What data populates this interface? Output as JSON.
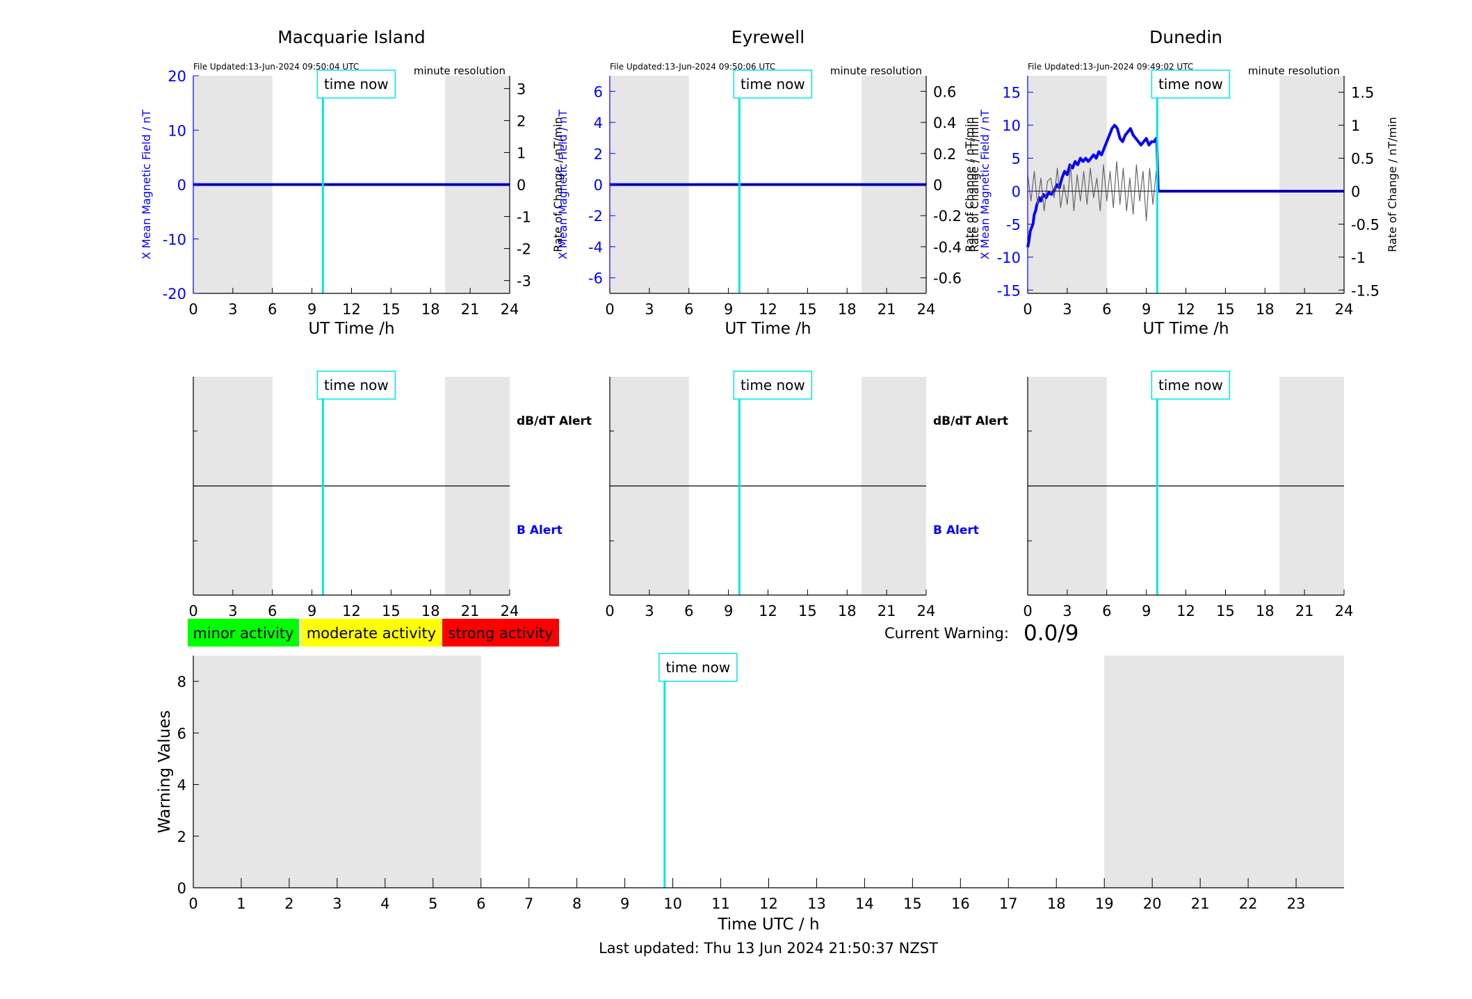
{
  "colors": {
    "blue": "#0000ff",
    "cyan": "#00e5ee",
    "night_shade": "#e6e6e6",
    "grey_trace": "#666666",
    "minor": "#00ff00",
    "moderate": "#ffff00",
    "strong": "#ff0000"
  },
  "common": {
    "xlabel": "UT Time /h",
    "x_ticks": [
      0,
      3,
      6,
      9,
      12,
      15,
      18,
      21,
      24
    ],
    "xlim": [
      0,
      24
    ],
    "night_spans": [
      [
        0,
        6
      ],
      [
        19.1,
        24
      ]
    ],
    "time_now_label": "time now",
    "resolution_label": "minute resolution",
    "y_left_label": "X Mean Magnetic Field / nT",
    "y_right_label": "Rate of Change / nT/min",
    "dbdt_alert_label": "dB/dT Alert",
    "b_alert_label": "B Alert"
  },
  "stations": [
    {
      "name": "Macquarie Island",
      "file_updated": "File Updated:13-Jun-2024 09:50:04 UTC",
      "time_now": 9.83,
      "left_axis": {
        "lim": [
          -20,
          20
        ],
        "ticks": [
          -20,
          -10,
          0,
          10,
          20
        ],
        "tick_labels": [
          "-20",
          "-10",
          "0",
          "10",
          "20"
        ]
      },
      "right_axis": {
        "lim": [
          -3.4,
          3.4
        ],
        "ticks": [
          -3,
          -2,
          -1,
          0,
          1,
          2,
          3
        ],
        "tick_labels": [
          "-3",
          "-2",
          "-1",
          "0",
          "1",
          "2",
          "3"
        ]
      },
      "show_alert_labels": true
    },
    {
      "name": "Eyrewell",
      "file_updated": "File Updated:13-Jun-2024 09:50:06 UTC",
      "time_now": 9.83,
      "left_axis": {
        "lim": [
          -7,
          7
        ],
        "ticks": [
          -6,
          -4,
          -2,
          0,
          2,
          4,
          6
        ],
        "tick_labels": [
          "-6",
          "-4",
          "-2",
          "0",
          "2",
          "4",
          "6"
        ]
      },
      "right_axis": {
        "lim": [
          -0.7,
          0.7
        ],
        "ticks": [
          -0.6,
          -0.4,
          -0.2,
          0,
          0.2,
          0.4,
          0.6
        ],
        "tick_labels": [
          "-0.6",
          "-0.4",
          "-0.2",
          "0",
          "0.2",
          "0.4",
          "0.6"
        ]
      },
      "show_alert_labels": true
    },
    {
      "name": "Dunedin",
      "file_updated": "File Updated:13-Jun-2024 09:49:02 UTC",
      "time_now": 9.83,
      "left_axis": {
        "lim": [
          -15.5,
          17.5
        ],
        "ticks": [
          -15,
          -10,
          -5,
          0,
          5,
          10,
          15
        ],
        "tick_labels": [
          "-15",
          "-10",
          "-5",
          "0",
          "5",
          "10",
          "15"
        ]
      },
      "right_axis": {
        "lim": [
          -1.55,
          1.75
        ],
        "ticks": [
          -1.5,
          -1,
          -0.5,
          0,
          0.5,
          1,
          1.5
        ],
        "tick_labels": [
          "-1.5",
          "-1",
          "-0.5",
          "0",
          "0.5",
          "1",
          "1.5"
        ]
      },
      "show_alert_labels": false
    }
  ],
  "legend": [
    {
      "label": "minor activity",
      "color": "#00ff00"
    },
    {
      "label": "moderate activity",
      "color": "#ffff00"
    },
    {
      "label": "strong activity",
      "color": "#ff0000"
    }
  ],
  "current_warning": {
    "label": "Current Warning:",
    "value": "0.0/9"
  },
  "warning_chart": {
    "ylabel": "Warning Values",
    "xlabel": "Time UTC / h",
    "ylim": [
      0,
      9
    ],
    "y_ticks": [
      0,
      2,
      4,
      6,
      8
    ],
    "xlim": [
      0,
      24
    ],
    "x_ticks": [
      0,
      1,
      2,
      3,
      4,
      5,
      6,
      7,
      8,
      9,
      10,
      11,
      12,
      13,
      14,
      15,
      16,
      17,
      18,
      19,
      20,
      21,
      22,
      23
    ],
    "night_spans": [
      [
        0,
        6
      ],
      [
        19,
        24
      ]
    ],
    "time_now": 9.83,
    "time_now_label": "time now"
  },
  "last_updated": "Last updated: Thu 13 Jun 2024 21:50:37 NZST",
  "chart_data": [
    {
      "type": "line",
      "title": "Macquarie Island",
      "xlabel": "UT Time /h",
      "ylabel": "X Mean Magnetic Field / nT",
      "ylabel_right": "Rate of Change / nT/min",
      "xlim": [
        0,
        24
      ],
      "ylim": [
        -20,
        20
      ],
      "ylim_right": [
        -3.4,
        3.4
      ],
      "series": [
        {
          "name": "",
          "axis": "left",
          "x": [
            0,
            24
          ],
          "y": [
            0,
            0
          ]
        }
      ]
    },
    {
      "type": "line",
      "title": "Eyrewell",
      "xlabel": "UT Time /h",
      "ylabel": "X Mean Magnetic Field / nT",
      "ylabel_right": "Rate of Change / nT/min",
      "xlim": [
        0,
        24
      ],
      "ylim": [
        -7,
        7
      ],
      "ylim_right": [
        -0.7,
        0.7
      ],
      "series": [
        {
          "name": "",
          "axis": "left",
          "x": [
            0,
            24
          ],
          "y": [
            0,
            0
          ]
        }
      ]
    },
    {
      "type": "line",
      "title": "Dunedin",
      "xlabel": "UT Time /h",
      "ylabel": "X Mean Magnetic Field / nT",
      "ylabel_right": "Rate of Change / nT/min",
      "xlim": [
        0,
        24
      ],
      "ylim": [
        -15.5,
        17.5
      ],
      "ylim_right": [
        -1.55,
        1.75
      ],
      "series": [
        {
          "name": "",
          "axis": "left",
          "x": [
            0,
            0.1,
            0.2,
            0.3,
            0.4,
            0.5,
            0.6,
            0.7,
            0.8,
            0.9,
            1.0,
            1.2,
            1.4,
            1.6,
            1.8,
            2.0,
            2.2,
            2.4,
            2.6,
            2.8,
            3.0,
            3.2,
            3.4,
            3.6,
            3.8,
            4.0,
            4.2,
            4.4,
            4.6,
            4.8,
            5.0,
            5.2,
            5.4,
            5.6,
            5.8,
            6.0,
            6.2,
            6.4,
            6.6,
            6.8,
            7.0,
            7.2,
            7.4,
            7.6,
            7.8,
            8.0,
            8.2,
            8.4,
            8.6,
            8.8,
            9.0,
            9.2,
            9.4,
            9.6,
            9.75,
            9.8,
            9.9,
            10.0,
            24
          ],
          "y": [
            -8.5,
            -7.5,
            -6,
            -5.5,
            -5,
            -3.5,
            -3,
            -2,
            -1.5,
            -1,
            -1.5,
            -0.5,
            -1,
            -0.2,
            -0.5,
            0,
            1,
            0.5,
            2,
            3,
            2.5,
            4,
            3.5,
            4.5,
            4,
            5,
            4.5,
            5,
            4.5,
            5,
            5.5,
            5,
            6,
            5.5,
            6.5,
            7.5,
            8.5,
            9.5,
            10,
            9.5,
            8,
            7.5,
            8.5,
            9,
            9.5,
            8.5,
            8,
            7.5,
            7,
            7.5,
            8,
            7,
            7.5,
            7.5,
            8,
            7.5,
            0,
            0,
            0
          ]
        },
        {
          "name": "",
          "axis": "right",
          "x": [
            0,
            0.25,
            0.5,
            0.75,
            1.0,
            1.25,
            1.5,
            1.75,
            2.0,
            2.25,
            2.5,
            2.75,
            3.0,
            3.25,
            3.5,
            3.75,
            4.0,
            4.25,
            4.5,
            4.75,
            5.0,
            5.25,
            5.5,
            5.75,
            6.0,
            6.25,
            6.5,
            6.75,
            7.0,
            7.25,
            7.5,
            7.75,
            8.0,
            8.25,
            8.5,
            8.75,
            9.0,
            9.25,
            9.5,
            9.75,
            9.83
          ],
          "y": [
            0.25,
            -0.15,
            0.3,
            -0.2,
            0.2,
            -0.3,
            0.15,
            0.2,
            -0.1,
            0.35,
            -0.25,
            0.1,
            -0.2,
            0.4,
            -0.3,
            0.25,
            -0.15,
            0.3,
            -0.2,
            0.35,
            -0.1,
            0.2,
            -0.3,
            0.4,
            -0.15,
            0.3,
            -0.25,
            0.45,
            -0.2,
            0.35,
            -0.3,
            0.2,
            -0.35,
            0.4,
            -0.15,
            0.3,
            -0.45,
            0.35,
            -0.2,
            0.3,
            0
          ]
        }
      ]
    },
    {
      "type": "line",
      "title": "",
      "xlabel": "Time UTC / h",
      "ylabel": "Warning Values",
      "xlim": [
        0,
        24
      ],
      "ylim": [
        0,
        9
      ],
      "series": []
    }
  ]
}
